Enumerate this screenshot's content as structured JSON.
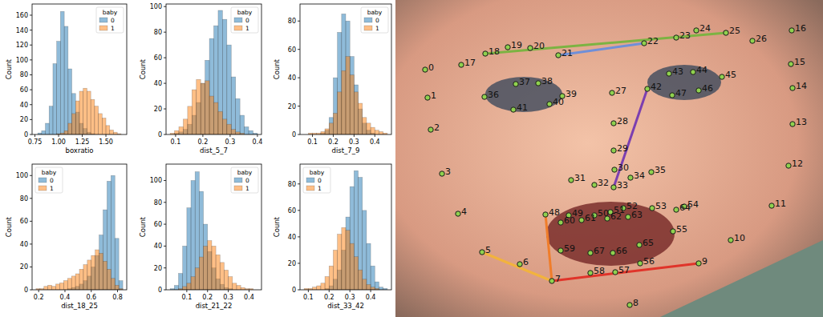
{
  "chart_data": [
    {
      "type": "histogram",
      "x_label": "boxratio",
      "y_label": "Count",
      "legend_title": "baby",
      "legend": "upper right",
      "bins": [
        0.78,
        0.82,
        0.86,
        0.9,
        0.94,
        0.98,
        1.02,
        1.06,
        1.1,
        1.14,
        1.18,
        1.22,
        1.26,
        1.3,
        1.34,
        1.38,
        1.42,
        1.46,
        1.5,
        1.54,
        1.58,
        1.62,
        1.66
      ],
      "series": [
        {
          "name": "0",
          "color": "#1f77b4",
          "values": [
            2,
            5,
            15,
            38,
            95,
            125,
            165,
            145,
            88,
            55,
            30,
            15,
            8,
            3,
            1,
            0,
            0,
            0,
            0,
            0,
            0,
            0
          ]
        },
        {
          "name": "1",
          "color": "#ff7f0e",
          "values": [
            0,
            0,
            0,
            0,
            0,
            1,
            2,
            5,
            15,
            28,
            45,
            58,
            62,
            58,
            47,
            38,
            28,
            22,
            12,
            6,
            3,
            1
          ]
        }
      ],
      "xlim": [
        0.72,
        1.72
      ],
      "xticks": [
        0.75,
        {
          "value": 1,
          "label": "1.00"
        },
        1.25,
        {
          "value": 1.5,
          "label": "1.50"
        }
      ],
      "ylim": [
        0,
        175
      ],
      "yticks": [
        0,
        20,
        40,
        60,
        80,
        100,
        120,
        140,
        160
      ]
    },
    {
      "type": "histogram",
      "x_label": "dist_5_7",
      "y_label": "Count",
      "legend_title": "baby",
      "legend": "upper right",
      "bins": [
        0.08,
        0.096,
        0.112,
        0.128,
        0.144,
        0.16,
        0.176,
        0.192,
        0.208,
        0.224,
        0.24,
        0.256,
        0.272,
        0.288,
        0.304,
        0.32,
        0.336,
        0.352,
        0.368,
        0.384,
        0.4
      ],
      "series": [
        {
          "name": "0",
          "color": "#1f77b4",
          "values": [
            0,
            1,
            2,
            4,
            8,
            15,
            25,
            40,
            58,
            75,
            85,
            97,
            90,
            70,
            45,
            28,
            15,
            6,
            3,
            1
          ]
        },
        {
          "name": "1",
          "color": "#ff7f0e",
          "values": [
            1,
            3,
            6,
            12,
            22,
            35,
            43,
            40,
            42,
            30,
            25,
            18,
            12,
            8,
            4,
            2,
            1,
            0,
            0,
            0
          ]
        }
      ],
      "xlim": [
        0.065,
        0.415
      ],
      "xticks": [
        0.1,
        0.2,
        0.3,
        0.4
      ],
      "ylim": [
        0,
        102
      ],
      "yticks": [
        0,
        20,
        40,
        60,
        80,
        100
      ]
    },
    {
      "type": "histogram",
      "x_label": "dist_7_9",
      "y_label": "Count",
      "legend_title": "baby",
      "legend": "upper right",
      "bins": [
        0.06,
        0.08,
        0.1,
        0.12,
        0.14,
        0.16,
        0.18,
        0.2,
        0.22,
        0.24,
        0.26,
        0.28,
        0.3,
        0.32,
        0.34,
        0.36,
        0.38,
        0.4,
        0.42,
        0.44,
        0.46
      ],
      "series": [
        {
          "name": "0",
          "color": "#1f77b4",
          "values": [
            0,
            0,
            0,
            0,
            1,
            3,
            12,
            40,
            72,
            85,
            80,
            55,
            35,
            18,
            8,
            3,
            1,
            0,
            0,
            0
          ]
        },
        {
          "name": "1",
          "color": "#ff7f0e",
          "values": [
            0,
            1,
            1,
            1,
            2,
            4,
            8,
            15,
            30,
            45,
            55,
            42,
            30,
            22,
            12,
            8,
            5,
            3,
            2,
            1
          ]
        }
      ],
      "xlim": [
        0.04,
        0.48
      ],
      "xticks": [
        0.1,
        0.2,
        0.3,
        0.4
      ],
      "ylim": [
        0,
        92
      ],
      "yticks": [
        0,
        20,
        40,
        60,
        80
      ]
    },
    {
      "type": "histogram",
      "x_label": "dist_18_25",
      "y_label": "Count",
      "legend_title": "baby",
      "legend": "upper left",
      "bins": [
        0.18,
        0.21,
        0.24,
        0.27,
        0.3,
        0.33,
        0.36,
        0.39,
        0.42,
        0.45,
        0.48,
        0.51,
        0.54,
        0.57,
        0.6,
        0.63,
        0.66,
        0.69,
        0.72,
        0.75,
        0.78,
        0.81,
        0.84
      ],
      "series": [
        {
          "name": "0",
          "color": "#1f77b4",
          "values": [
            0,
            0,
            0,
            0,
            0,
            0,
            0,
            0,
            1,
            2,
            3,
            5,
            8,
            12,
            20,
            30,
            48,
            70,
            95,
            100,
            45,
            8
          ]
        },
        {
          "name": "1",
          "color": "#ff7f0e",
          "values": [
            1,
            1,
            3,
            4,
            3,
            5,
            6,
            8,
            10,
            12,
            14,
            18,
            22,
            26,
            30,
            35,
            32,
            25,
            18,
            10,
            4,
            1
          ]
        }
      ],
      "xlim": [
        0.15,
        0.87
      ],
      "xticks": [
        0.2,
        0.4,
        0.6,
        0.8
      ],
      "ylim": [
        0,
        110
      ],
      "yticks": [
        0,
        20,
        40,
        60,
        80,
        100
      ]
    },
    {
      "type": "histogram",
      "x_label": "dist_21_22",
      "y_label": "Count",
      "legend_title": "baby",
      "legend": "upper right",
      "bins": [
        0.02,
        0.04,
        0.06,
        0.08,
        0.1,
        0.12,
        0.14,
        0.16,
        0.18,
        0.2,
        0.22,
        0.24,
        0.26,
        0.28,
        0.3,
        0.32,
        0.34,
        0.36,
        0.38,
        0.4,
        0.42,
        0.44
      ],
      "series": [
        {
          "name": "0",
          "color": "#1f77b4",
          "values": [
            1,
            4,
            15,
            40,
            75,
            100,
            108,
            90,
            60,
            35,
            20,
            10,
            5,
            2,
            1,
            0,
            0,
            0,
            0,
            0,
            0
          ]
        },
        {
          "name": "1",
          "color": "#ff7f0e",
          "values": [
            0,
            0,
            1,
            3,
            6,
            12,
            20,
            30,
            40,
            45,
            40,
            32,
            25,
            18,
            12,
            6,
            4,
            2,
            1,
            1,
            0
          ]
        }
      ],
      "xlim": [
        0.0,
        0.46
      ],
      "xticks": [
        0.1,
        0.2,
        0.3,
        0.4
      ],
      "ylim": [
        0,
        115
      ],
      "yticks": [
        0,
        20,
        40,
        60,
        80,
        100
      ]
    },
    {
      "type": "histogram",
      "x_label": "dist_33_42",
      "y_label": "Count",
      "legend_title": "baby",
      "legend": "upper left",
      "bins": [
        0.08,
        0.1,
        0.12,
        0.14,
        0.16,
        0.18,
        0.2,
        0.22,
        0.24,
        0.26,
        0.28,
        0.3,
        0.32,
        0.34,
        0.36,
        0.38,
        0.4,
        0.42,
        0.44,
        0.46,
        0.48
      ],
      "series": [
        {
          "name": "0",
          "color": "#1f77b4",
          "values": [
            0,
            0,
            0,
            0,
            0,
            1,
            3,
            8,
            15,
            30,
            55,
            78,
            90,
            85,
            60,
            35,
            18,
            6,
            2,
            1
          ]
        },
        {
          "name": "1",
          "color": "#ff7f0e",
          "values": [
            1,
            1,
            2,
            3,
            5,
            10,
            18,
            30,
            42,
            47,
            45,
            35,
            25,
            15,
            8,
            4,
            2,
            1,
            0,
            0
          ]
        }
      ],
      "xlim": [
        0.06,
        0.5
      ],
      "xticks": [
        0.1,
        0.2,
        0.3,
        0.4
      ],
      "ylim": [
        0,
        95
      ],
      "yticks": [
        0,
        20,
        40,
        60,
        80
      ]
    },
    {
      "type": "scatter",
      "tick_labels": false,
      "color": "#8fd14f",
      "marker": "circle",
      "xlim": [
        0,
        533
      ],
      "ylim": [
        396,
        0
      ],
      "labels": [
        "0",
        "1",
        "2",
        "3",
        "4",
        "5",
        "6",
        "7",
        "8",
        "9",
        "10",
        "11",
        "12",
        "13",
        "14",
        "15",
        "16",
        "17",
        "18",
        "19",
        "20",
        "21",
        "22",
        "23",
        "24",
        "25",
        "26",
        "27",
        "28",
        "29",
        "30",
        "31",
        "32",
        "33",
        "34",
        "35",
        "36",
        "37",
        "38",
        "39",
        "40",
        "41",
        "42",
        "43",
        "44",
        "45",
        "46",
        "47",
        "48",
        "49",
        "50",
        "51",
        "52",
        "53",
        "54",
        "55",
        "56",
        "57",
        "58",
        "59",
        "60",
        "61",
        "62",
        "63",
        "64",
        "65",
        "66",
        "67"
      ],
      "x": [
        37,
        40,
        44,
        58,
        78,
        108,
        155,
        195,
        292,
        378,
        418,
        469,
        490,
        495,
        495,
        493,
        494,
        82,
        112,
        140,
        168,
        203,
        310,
        350,
        375,
        412,
        445,
        270,
        272,
        272,
        273,
        219,
        248,
        272,
        293,
        319,
        111,
        150,
        178,
        208,
        192,
        147,
        314,
        341,
        371,
        407,
        378,
        345,
        187,
        216,
        248,
        268,
        284,
        320,
        360,
        346,
        305,
        274,
        243,
        206,
        206,
        232,
        264,
        290,
        350,
        304,
        271,
        243
      ],
      "values": [
        87,
        122,
        162,
        217,
        267,
        315,
        330,
        351,
        381,
        329,
        300,
        257,
        207,
        155,
        110,
        80,
        38,
        81,
        67,
        59,
        60,
        69,
        54,
        47,
        38,
        41,
        51,
        116,
        154,
        188,
        212,
        225,
        231,
        234,
        222,
        215,
        121,
        105,
        104,
        120,
        130,
        137,
        111,
        92,
        90,
        96,
        113,
        119,
        268,
        269,
        269,
        265,
        260,
        260,
        258,
        289,
        329,
        340,
        341,
        313,
        278,
        275,
        273,
        271,
        262,
        306,
        316,
        316
      ],
      "segments": [
        {
          "from": 18,
          "to": 25,
          "color": "#7cb342"
        },
        {
          "from": 21,
          "to": 22,
          "color": "#6f8fd8"
        },
        {
          "from": 33,
          "to": 42,
          "color": "#7b3fb0"
        },
        {
          "from": 5,
          "to": 7,
          "color": "#f2b33d"
        },
        {
          "from": 7,
          "to": 9,
          "color": "#e0342a"
        },
        {
          "from": 48,
          "to": 7,
          "color": "#f07d2a"
        }
      ]
    }
  ]
}
